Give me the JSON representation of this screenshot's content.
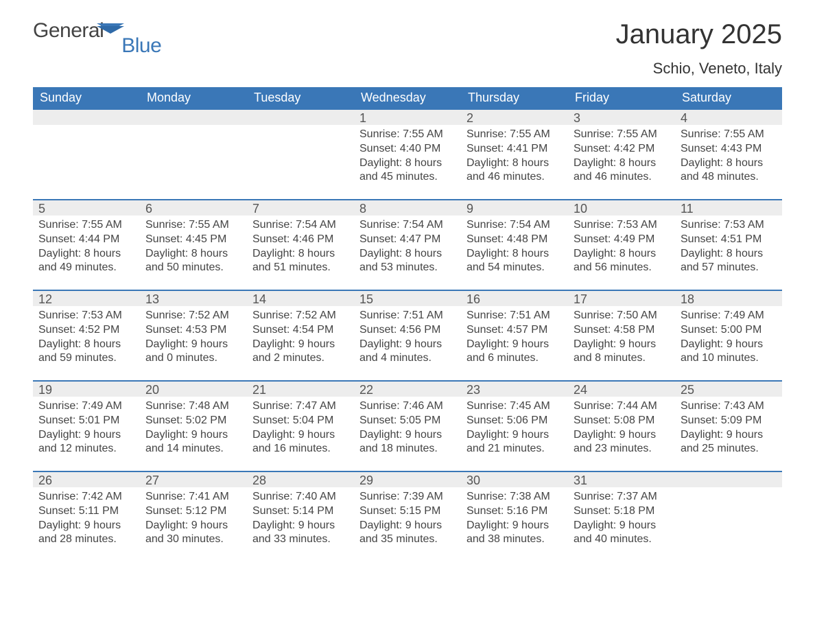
{
  "brand": {
    "text1": "General",
    "text2": "Blue",
    "gray_color": "#444444",
    "blue_color": "#3a77b7"
  },
  "title": "January 2025",
  "location": "Schio, Veneto, Italy",
  "header_bg": "#3a77b7",
  "header_fg": "#ffffff",
  "daynum_bg": "#ededed",
  "border_color": "#3a77b7",
  "text_color": "#444444",
  "background_color": "#ffffff",
  "fonts": {
    "title_size_pt": 30,
    "location_size_pt": 17,
    "header_size_pt": 13,
    "daynum_size_pt": 13,
    "body_size_pt": 12
  },
  "days_of_week": [
    "Sunday",
    "Monday",
    "Tuesday",
    "Wednesday",
    "Thursday",
    "Friday",
    "Saturday"
  ],
  "weeks": [
    [
      null,
      null,
      null,
      {
        "num": "1",
        "sunrise": "Sunrise: 7:55 AM",
        "sunset": "Sunset: 4:40 PM",
        "daylight1": "Daylight: 8 hours",
        "daylight2": "and 45 minutes."
      },
      {
        "num": "2",
        "sunrise": "Sunrise: 7:55 AM",
        "sunset": "Sunset: 4:41 PM",
        "daylight1": "Daylight: 8 hours",
        "daylight2": "and 46 minutes."
      },
      {
        "num": "3",
        "sunrise": "Sunrise: 7:55 AM",
        "sunset": "Sunset: 4:42 PM",
        "daylight1": "Daylight: 8 hours",
        "daylight2": "and 46 minutes."
      },
      {
        "num": "4",
        "sunrise": "Sunrise: 7:55 AM",
        "sunset": "Sunset: 4:43 PM",
        "daylight1": "Daylight: 8 hours",
        "daylight2": "and 48 minutes."
      }
    ],
    [
      {
        "num": "5",
        "sunrise": "Sunrise: 7:55 AM",
        "sunset": "Sunset: 4:44 PM",
        "daylight1": "Daylight: 8 hours",
        "daylight2": "and 49 minutes."
      },
      {
        "num": "6",
        "sunrise": "Sunrise: 7:55 AM",
        "sunset": "Sunset: 4:45 PM",
        "daylight1": "Daylight: 8 hours",
        "daylight2": "and 50 minutes."
      },
      {
        "num": "7",
        "sunrise": "Sunrise: 7:54 AM",
        "sunset": "Sunset: 4:46 PM",
        "daylight1": "Daylight: 8 hours",
        "daylight2": "and 51 minutes."
      },
      {
        "num": "8",
        "sunrise": "Sunrise: 7:54 AM",
        "sunset": "Sunset: 4:47 PM",
        "daylight1": "Daylight: 8 hours",
        "daylight2": "and 53 minutes."
      },
      {
        "num": "9",
        "sunrise": "Sunrise: 7:54 AM",
        "sunset": "Sunset: 4:48 PM",
        "daylight1": "Daylight: 8 hours",
        "daylight2": "and 54 minutes."
      },
      {
        "num": "10",
        "sunrise": "Sunrise: 7:53 AM",
        "sunset": "Sunset: 4:49 PM",
        "daylight1": "Daylight: 8 hours",
        "daylight2": "and 56 minutes."
      },
      {
        "num": "11",
        "sunrise": "Sunrise: 7:53 AM",
        "sunset": "Sunset: 4:51 PM",
        "daylight1": "Daylight: 8 hours",
        "daylight2": "and 57 minutes."
      }
    ],
    [
      {
        "num": "12",
        "sunrise": "Sunrise: 7:53 AM",
        "sunset": "Sunset: 4:52 PM",
        "daylight1": "Daylight: 8 hours",
        "daylight2": "and 59 minutes."
      },
      {
        "num": "13",
        "sunrise": "Sunrise: 7:52 AM",
        "sunset": "Sunset: 4:53 PM",
        "daylight1": "Daylight: 9 hours",
        "daylight2": "and 0 minutes."
      },
      {
        "num": "14",
        "sunrise": "Sunrise: 7:52 AM",
        "sunset": "Sunset: 4:54 PM",
        "daylight1": "Daylight: 9 hours",
        "daylight2": "and 2 minutes."
      },
      {
        "num": "15",
        "sunrise": "Sunrise: 7:51 AM",
        "sunset": "Sunset: 4:56 PM",
        "daylight1": "Daylight: 9 hours",
        "daylight2": "and 4 minutes."
      },
      {
        "num": "16",
        "sunrise": "Sunrise: 7:51 AM",
        "sunset": "Sunset: 4:57 PM",
        "daylight1": "Daylight: 9 hours",
        "daylight2": "and 6 minutes."
      },
      {
        "num": "17",
        "sunrise": "Sunrise: 7:50 AM",
        "sunset": "Sunset: 4:58 PM",
        "daylight1": "Daylight: 9 hours",
        "daylight2": "and 8 minutes."
      },
      {
        "num": "18",
        "sunrise": "Sunrise: 7:49 AM",
        "sunset": "Sunset: 5:00 PM",
        "daylight1": "Daylight: 9 hours",
        "daylight2": "and 10 minutes."
      }
    ],
    [
      {
        "num": "19",
        "sunrise": "Sunrise: 7:49 AM",
        "sunset": "Sunset: 5:01 PM",
        "daylight1": "Daylight: 9 hours",
        "daylight2": "and 12 minutes."
      },
      {
        "num": "20",
        "sunrise": "Sunrise: 7:48 AM",
        "sunset": "Sunset: 5:02 PM",
        "daylight1": "Daylight: 9 hours",
        "daylight2": "and 14 minutes."
      },
      {
        "num": "21",
        "sunrise": "Sunrise: 7:47 AM",
        "sunset": "Sunset: 5:04 PM",
        "daylight1": "Daylight: 9 hours",
        "daylight2": "and 16 minutes."
      },
      {
        "num": "22",
        "sunrise": "Sunrise: 7:46 AM",
        "sunset": "Sunset: 5:05 PM",
        "daylight1": "Daylight: 9 hours",
        "daylight2": "and 18 minutes."
      },
      {
        "num": "23",
        "sunrise": "Sunrise: 7:45 AM",
        "sunset": "Sunset: 5:06 PM",
        "daylight1": "Daylight: 9 hours",
        "daylight2": "and 21 minutes."
      },
      {
        "num": "24",
        "sunrise": "Sunrise: 7:44 AM",
        "sunset": "Sunset: 5:08 PM",
        "daylight1": "Daylight: 9 hours",
        "daylight2": "and 23 minutes."
      },
      {
        "num": "25",
        "sunrise": "Sunrise: 7:43 AM",
        "sunset": "Sunset: 5:09 PM",
        "daylight1": "Daylight: 9 hours",
        "daylight2": "and 25 minutes."
      }
    ],
    [
      {
        "num": "26",
        "sunrise": "Sunrise: 7:42 AM",
        "sunset": "Sunset: 5:11 PM",
        "daylight1": "Daylight: 9 hours",
        "daylight2": "and 28 minutes."
      },
      {
        "num": "27",
        "sunrise": "Sunrise: 7:41 AM",
        "sunset": "Sunset: 5:12 PM",
        "daylight1": "Daylight: 9 hours",
        "daylight2": "and 30 minutes."
      },
      {
        "num": "28",
        "sunrise": "Sunrise: 7:40 AM",
        "sunset": "Sunset: 5:14 PM",
        "daylight1": "Daylight: 9 hours",
        "daylight2": "and 33 minutes."
      },
      {
        "num": "29",
        "sunrise": "Sunrise: 7:39 AM",
        "sunset": "Sunset: 5:15 PM",
        "daylight1": "Daylight: 9 hours",
        "daylight2": "and 35 minutes."
      },
      {
        "num": "30",
        "sunrise": "Sunrise: 7:38 AM",
        "sunset": "Sunset: 5:16 PM",
        "daylight1": "Daylight: 9 hours",
        "daylight2": "and 38 minutes."
      },
      {
        "num": "31",
        "sunrise": "Sunrise: 7:37 AM",
        "sunset": "Sunset: 5:18 PM",
        "daylight1": "Daylight: 9 hours",
        "daylight2": "and 40 minutes."
      },
      null
    ]
  ]
}
